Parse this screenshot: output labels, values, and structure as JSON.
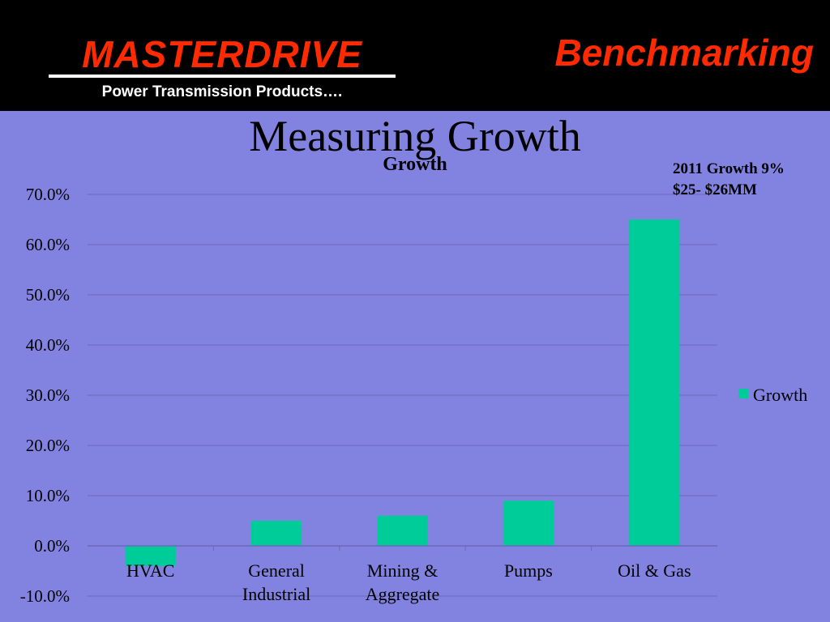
{
  "header": {
    "brand": "MASTERDRIVE",
    "tagline": "Power Transmission Products….",
    "section_title": "Benchmarking"
  },
  "slide": {
    "title": "Measuring Growth",
    "annotation": [
      "2011 Growth 9%",
      "$25- $26MM"
    ]
  },
  "colors": {
    "background": "#8282e0",
    "header": "#000000",
    "brand_red": "#ff2a00",
    "bar": "#00cc99"
  },
  "chart_data": {
    "type": "bar",
    "title": "Growth",
    "categories": [
      [
        "HVAC"
      ],
      [
        "General",
        "Industrial"
      ],
      [
        "Mining &",
        "Aggregate"
      ],
      [
        "Pumps"
      ],
      [
        "Oil & Gas"
      ]
    ],
    "series": [
      {
        "name": "Growth",
        "values": [
          -4.0,
          5.0,
          6.0,
          9.0,
          65.0
        ]
      }
    ],
    "ylim": [
      -10,
      70
    ],
    "yticks": [
      70,
      60,
      50,
      40,
      30,
      20,
      10,
      0,
      -10
    ],
    "ytick_labels": [
      "70.0%",
      "60.0%",
      "50.0%",
      "40.0%",
      "30.0%",
      "20.0%",
      "10.0%",
      "0.0%",
      "-10.0%"
    ],
    "grid": true,
    "legend": "right"
  }
}
